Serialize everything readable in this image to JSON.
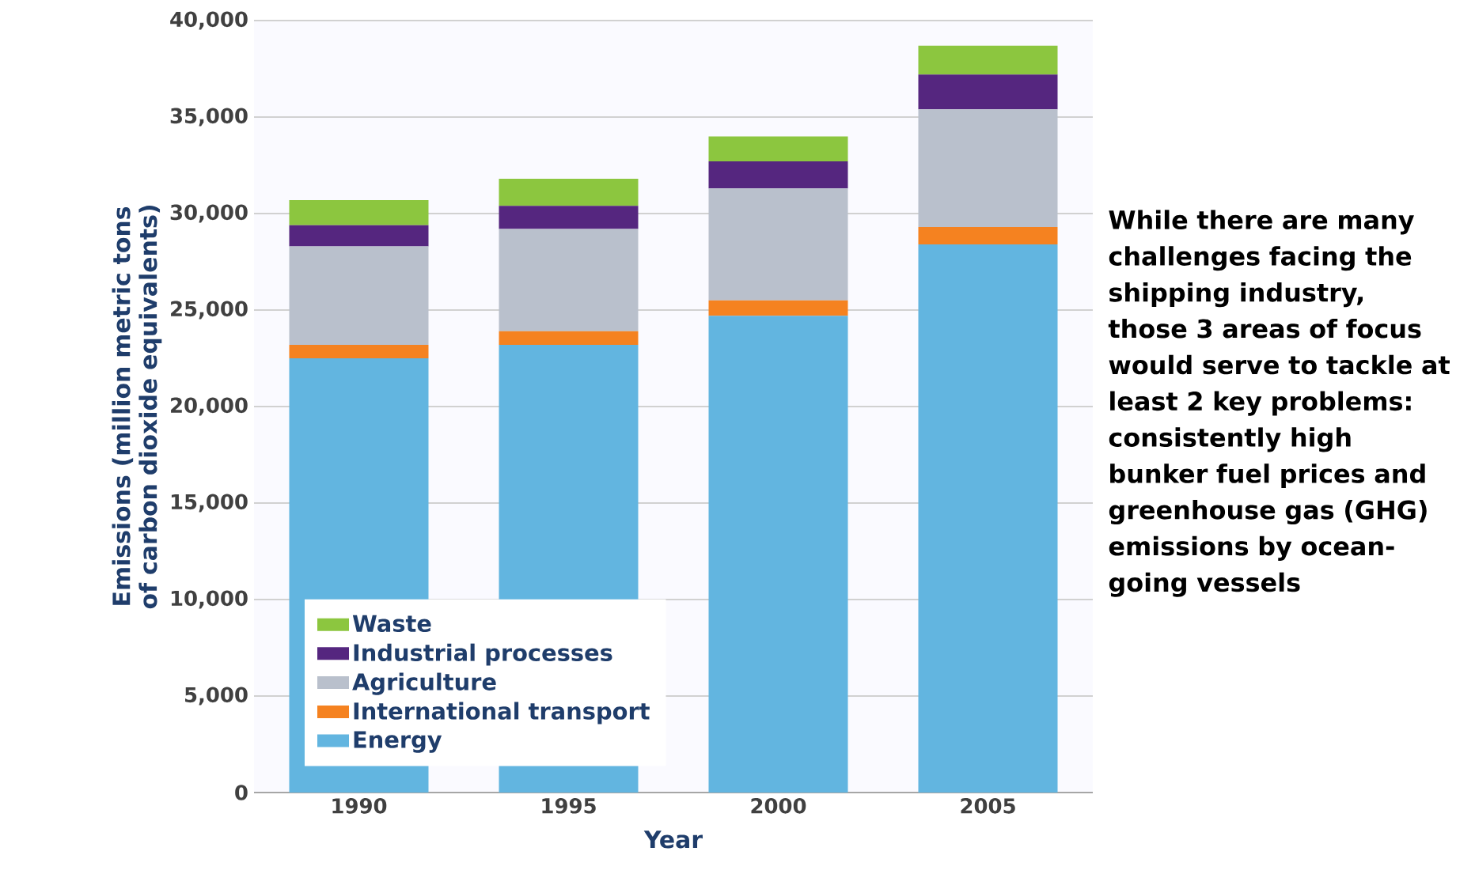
{
  "chart_data": {
    "type": "bar",
    "stacked": true,
    "categories": [
      "1990",
      "1995",
      "2000",
      "2005"
    ],
    "series": [
      {
        "name": "Energy",
        "color": "#62b5e0",
        "values": [
          22500,
          23200,
          24700,
          28400
        ]
      },
      {
        "name": "International transport",
        "color": "#f58220",
        "values": [
          700,
          700,
          800,
          900
        ]
      },
      {
        "name": "Agriculture",
        "color": "#b9c0cc",
        "values": [
          5100,
          5300,
          5800,
          6100
        ]
      },
      {
        "name": "Industrial processes",
        "color": "#55267f",
        "values": [
          1100,
          1200,
          1400,
          1800
        ]
      },
      {
        "name": "Waste",
        "color": "#8cc63f",
        "values": [
          1300,
          1400,
          1300,
          1500
        ]
      }
    ],
    "xlabel": "Year",
    "ylabel": "Emissions (million metric tons of carbon dioxide equivalents)",
    "ylim": [
      0,
      40000
    ],
    "yticks": [
      0,
      {
        "value": 5000,
        "label": "5,000"
      },
      {
        "value": 10000,
        "label": "10,000"
      },
      {
        "value": 15000,
        "label": "15,000"
      },
      {
        "value": 20000,
        "label": "20,000"
      },
      {
        "value": 25000,
        "label": "25,000"
      },
      {
        "value": 30000,
        "label": "30,000"
      },
      {
        "value": 35000,
        "label": "35,000"
      },
      {
        "value": 40000,
        "label": "40,000"
      }
    ],
    "grid": "y",
    "legend": "bottom left",
    "annotations": [
      "While there are many challenges facing the shipping industry, those 3 areas of focus would serve to tackle at least 2 key problems: consistently high bunker fuel prices and greenhouse gas (GHG) emissions by ocean-going vessels"
    ]
  }
}
